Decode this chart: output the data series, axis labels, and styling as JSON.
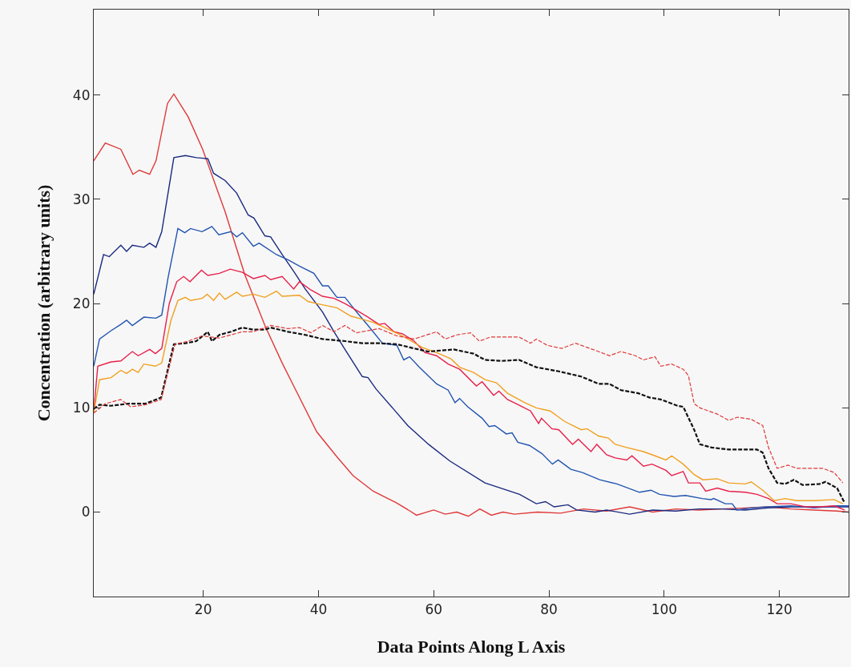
{
  "chart_data": {
    "type": "line",
    "xlabel": "Data Points Along L Axis",
    "ylabel": "Concentration (arbitrary units)",
    "xlim": [
      1,
      132
    ],
    "ylim": [
      -8.1,
      48.2
    ],
    "xticks": [
      20,
      40,
      60,
      80,
      100,
      120
    ],
    "yticks": [
      0,
      10,
      20,
      30,
      40
    ],
    "marker": "none",
    "series": [
      {
        "color": "#e03838",
        "line_style": "solid",
        "x": [
          1,
          3,
          5.7,
          7.8,
          8.9,
          10.7,
          11.8,
          13.8,
          14.9,
          17.4,
          19.9,
          23.8,
          27.2,
          30.7,
          33.7,
          35.7,
          39.7,
          43.2,
          46,
          49.5,
          53.5,
          55.9,
          57,
          60,
          62,
          64,
          66,
          68,
          70,
          72,
          74,
          78,
          82,
          86,
          90,
          94,
          98,
          102,
          106,
          110,
          114,
          118,
          122,
          126,
          130,
          132
        ],
        "values": [
          33.7,
          35.4,
          34.8,
          32.4,
          32.8,
          32.4,
          33.7,
          39.2,
          40.1,
          37.9,
          34.8,
          28.8,
          22.8,
          17.9,
          14.3,
          12.1,
          7.7,
          5.3,
          3.5,
          2.0,
          0.9,
          0.1,
          -0.3,
          0.2,
          -0.2,
          0.0,
          -0.4,
          0.3,
          -0.3,
          0.0,
          -0.2,
          0.0,
          -0.1,
          0.3,
          0.1,
          0.5,
          0.0,
          0.3,
          0.2,
          0.3,
          0.4,
          0.5,
          0.3,
          0.2,
          0.1,
          0.0
        ]
      },
      {
        "color": "#1a2a80",
        "line_style": "solid",
        "x": [
          1,
          2.7,
          3.7,
          5.7,
          6.7,
          7.7,
          9.7,
          10.7,
          11.8,
          12.8,
          14.9,
          16.9,
          18.8,
          20.8,
          21.8,
          23.8,
          25.8,
          27.8,
          28.8,
          30.7,
          31.7,
          33.7,
          35.7,
          37.7,
          40.7,
          42.7,
          44.6,
          47.6,
          48.6,
          50,
          53,
          55.5,
          59.1,
          62.8,
          68.9,
          74.9,
          77.8,
          79.4,
          80.9,
          83.3,
          84.8,
          88,
          90,
          94,
          98,
          102,
          106,
          110,
          114,
          118,
          122,
          126,
          132
        ],
        "values": [
          20.9,
          24.7,
          24.5,
          25.6,
          25.0,
          25.6,
          25.4,
          25.8,
          25.4,
          26.9,
          34.0,
          34.2,
          34.0,
          33.9,
          32.5,
          31.8,
          30.6,
          28.5,
          28.2,
          26.5,
          26.4,
          24.7,
          23.1,
          21.4,
          19.2,
          17.3,
          15.6,
          13.0,
          12.9,
          11.8,
          9.9,
          8.3,
          6.5,
          4.9,
          2.8,
          1.7,
          0.8,
          1.0,
          0.5,
          0.7,
          0.2,
          0.0,
          0.2,
          -0.2,
          0.2,
          0.1,
          0.3,
          0.3,
          0.2,
          0.4,
          0.5,
          0.5,
          0.5
        ]
      },
      {
        "color": "#2255b0",
        "line_style": "solid",
        "x": [
          1,
          2,
          4,
          5.7,
          6.7,
          7.7,
          9.7,
          11.8,
          12.8,
          13.9,
          15.6,
          16.8,
          17.8,
          19.8,
          21.5,
          22.7,
          24.8,
          25.8,
          26.8,
          28.7,
          29.7,
          32.7,
          34.7,
          36.7,
          39.2,
          40.7,
          41.7,
          43.2,
          44.6,
          46.6,
          48.6,
          51.1,
          53.6,
          54.8,
          55.8,
          57.5,
          59,
          60.5,
          62.5,
          63.7,
          64.5,
          65.9,
          68.4,
          69.6,
          70.6,
          72.6,
          73.6,
          74.6,
          76.6,
          78.8,
          80.6,
          81.6,
          83.8,
          85.8,
          88.8,
          91.8,
          95.7,
          97.7,
          99.2,
          101.7,
          103.7,
          106.6,
          108.1,
          108.6,
          110.6,
          111.8,
          112.6,
          115,
          118,
          122,
          126,
          130,
          132
        ],
        "values": [
          14.0,
          16.6,
          17.4,
          18.0,
          18.4,
          17.9,
          18.7,
          18.6,
          18.9,
          22.5,
          27.2,
          26.8,
          27.2,
          26.9,
          27.4,
          26.6,
          26.9,
          26.4,
          26.8,
          25.5,
          25.8,
          24.7,
          24.2,
          23.6,
          22.9,
          21.7,
          21.7,
          20.6,
          20.6,
          19.2,
          17.9,
          16.2,
          16.0,
          14.6,
          14.9,
          13.9,
          13.1,
          12.3,
          11.7,
          10.5,
          10.9,
          10.1,
          9.0,
          8.2,
          8.3,
          7.5,
          7.6,
          6.7,
          6.4,
          5.6,
          4.6,
          5.0,
          4.1,
          3.8,
          3.1,
          2.7,
          1.9,
          2.1,
          1.7,
          1.5,
          1.6,
          1.3,
          1.2,
          1.3,
          0.8,
          0.8,
          0.2,
          0.4,
          0.5,
          0.6,
          0.4,
          0.6,
          0.6
        ]
      },
      {
        "color": "#e8204a",
        "line_style": "solid",
        "x": [
          1,
          1.7,
          4,
          5.7,
          7.7,
          8.7,
          10.7,
          11.7,
          12.8,
          14.1,
          15.4,
          16.6,
          17.7,
          19.7,
          20.8,
          22.8,
          24.7,
          26.8,
          28.7,
          30.7,
          31.7,
          33.7,
          35.7,
          36.7,
          38.7,
          40.7,
          42.7,
          44.6,
          47.1,
          48.6,
          50.5,
          51.5,
          53.1,
          54.6,
          56.6,
          58.5,
          60.5,
          62.5,
          64.5,
          67.4,
          68.4,
          70.4,
          71.3,
          72.8,
          74.3,
          76.8,
          78.2,
          78.7,
          80.5,
          81.7,
          84.1,
          85.1,
          87.3,
          88.3,
          90,
          91.5,
          93.5,
          94.4,
          96.4,
          97.9,
          100.3,
          101.3,
          103.3,
          104.2,
          106.2,
          107.2,
          109.2,
          111.2,
          114.1,
          116.1,
          118.1,
          119.6,
          122,
          124.5,
          127,
          129.5,
          131.3
        ],
        "values": [
          9.7,
          14.0,
          14.4,
          14.5,
          15.4,
          15.0,
          15.6,
          15.2,
          15.7,
          20.0,
          22.1,
          22.6,
          22.1,
          23.2,
          22.7,
          22.9,
          23.3,
          23.0,
          22.4,
          22.7,
          22.3,
          22.6,
          21.4,
          22.1,
          21.3,
          20.7,
          20.5,
          20.0,
          19.2,
          18.7,
          18.0,
          18.1,
          17.3,
          17.1,
          16.4,
          15.3,
          15.0,
          14.2,
          13.7,
          12.1,
          12.5,
          11.2,
          11.6,
          10.8,
          10.4,
          9.7,
          8.5,
          9.0,
          8.0,
          7.9,
          6.5,
          7.0,
          5.8,
          6.5,
          5.5,
          5.2,
          5.0,
          5.4,
          4.4,
          4.6,
          4.0,
          3.5,
          3.9,
          2.8,
          2.8,
          2.0,
          2.3,
          2.0,
          1.9,
          1.7,
          1.3,
          0.8,
          0.8,
          0.5,
          0.5,
          0.6,
          0.2
        ]
      },
      {
        "color": "#f0a020",
        "line_style": "solid",
        "x": [
          1,
          2,
          4,
          5.7,
          6.7,
          7.7,
          8.7,
          9.7,
          11.7,
          12.8,
          14.4,
          15.6,
          16.9,
          17.8,
          19.8,
          20.7,
          21.8,
          22.8,
          23.8,
          25.8,
          26.8,
          28.7,
          30.7,
          32.7,
          33.7,
          36.7,
          38.2,
          39.7,
          43.2,
          45.6,
          47.6,
          49.5,
          51.5,
          54.6,
          58,
          60.5,
          63,
          64.5,
          66.9,
          68.9,
          70.9,
          72.8,
          75.8,
          77.8,
          80.2,
          82.7,
          85.6,
          86.6,
          88.6,
          90.3,
          91.5,
          93.5,
          96.4,
          98.4,
          100.3,
          101.3,
          103.3,
          105.2,
          106.7,
          109.2,
          111.2,
          114.1,
          115.1,
          117.1,
          119.1,
          121,
          123,
          126,
          129.5,
          131
        ],
        "values": [
          9.5,
          12.7,
          12.9,
          13.6,
          13.3,
          13.7,
          13.4,
          14.2,
          14.0,
          14.3,
          18.4,
          20.3,
          20.6,
          20.3,
          20.5,
          20.9,
          20.3,
          21.0,
          20.4,
          21.1,
          20.7,
          20.9,
          20.6,
          21.2,
          20.7,
          20.8,
          20.2,
          20.0,
          19.6,
          18.8,
          18.5,
          18.2,
          17.7,
          16.9,
          15.8,
          15.3,
          14.7,
          13.9,
          13.4,
          12.7,
          12.4,
          11.4,
          10.5,
          10.0,
          9.7,
          8.7,
          7.9,
          8.0,
          7.3,
          7.1,
          6.5,
          6.2,
          5.8,
          5.4,
          5.0,
          5.4,
          4.6,
          3.6,
          3.1,
          3.2,
          2.8,
          2.7,
          2.9,
          2.1,
          1.1,
          1.3,
          1.1,
          1.1,
          1.2,
          0.8
        ]
      },
      {
        "color": "#111111",
        "line_style": "dashed",
        "x": [
          1,
          2,
          4,
          7,
          10,
          12.7,
          14.9,
          16.9,
          18.8,
          20.8,
          21.5,
          22.8,
          24.8,
          26.8,
          28.7,
          30.7,
          31.7,
          34.7,
          37.7,
          40.7,
          44.6,
          47.6,
          50.5,
          53.6,
          56.6,
          59,
          63.5,
          66.9,
          68.9,
          71.8,
          74.8,
          77.8,
          81.7,
          85.6,
          88.6,
          90.5,
          92.5,
          95.5,
          97.4,
          99.4,
          102.3,
          103.3,
          105.2,
          106.2,
          108.2,
          111.2,
          116.1,
          117.1,
          118.1,
          119.6,
          121,
          122.5,
          124,
          127,
          128,
          130,
          131.2
        ],
        "values": [
          9.9,
          10.3,
          10.2,
          10.4,
          10.4,
          11.0,
          16.1,
          16.2,
          16.4,
          17.3,
          16.4,
          17.0,
          17.3,
          17.7,
          17.5,
          17.5,
          17.7,
          17.3,
          17.0,
          16.6,
          16.4,
          16.2,
          16.2,
          16.1,
          15.7,
          15.4,
          15.6,
          15.2,
          14.6,
          14.5,
          14.6,
          13.9,
          13.5,
          13.0,
          12.3,
          12.3,
          11.7,
          11.4,
          11.0,
          10.8,
          10.2,
          10.1,
          7.9,
          6.5,
          6.2,
          6.0,
          6.0,
          5.7,
          4.2,
          2.8,
          2.7,
          3.1,
          2.6,
          2.7,
          2.9,
          2.3,
          1.0
        ]
      },
      {
        "color": "#e03838",
        "line_style": "dashed",
        "x": [
          1,
          3,
          5.7,
          7.4,
          10,
          12.7,
          15.1,
          17.4,
          19.8,
          22.8,
          24.8,
          26.8,
          28.7,
          31.7,
          34.7,
          36.7,
          38.7,
          40.7,
          42.7,
          44.6,
          46.6,
          50.5,
          53.6,
          56.6,
          60.5,
          62,
          64,
          66.4,
          67.9,
          69.9,
          74.8,
          76.8,
          77.8,
          79.7,
          82.2,
          84.6,
          86.6,
          88.6,
          90.5,
          92.5,
          95,
          96.4,
          98.4,
          99.4,
          101.3,
          103.3,
          104.2,
          105.2,
          106.2,
          109.2,
          111.2,
          112.7,
          115.1,
          117.1,
          118.1,
          119.6,
          121.5,
          123,
          125,
          127.5,
          129.5,
          131
        ],
        "values": [
          9.5,
          10.4,
          10.8,
          10.1,
          10.3,
          10.8,
          16.1,
          16.4,
          16.9,
          16.7,
          17.0,
          17.3,
          17.3,
          17.9,
          17.6,
          17.7,
          17.2,
          17.9,
          17.3,
          17.9,
          17.2,
          17.6,
          16.9,
          16.6,
          17.3,
          16.6,
          17.0,
          17.2,
          16.4,
          16.8,
          16.8,
          16.2,
          16.6,
          16.0,
          15.7,
          16.2,
          15.8,
          15.4,
          15.0,
          15.4,
          15.0,
          14.6,
          14.9,
          14.0,
          14.2,
          13.7,
          13.1,
          10.4,
          10.0,
          9.4,
          8.8,
          9.1,
          8.9,
          8.3,
          6.2,
          4.2,
          4.5,
          4.2,
          4.2,
          4.2,
          3.8,
          2.8
        ]
      }
    ]
  }
}
